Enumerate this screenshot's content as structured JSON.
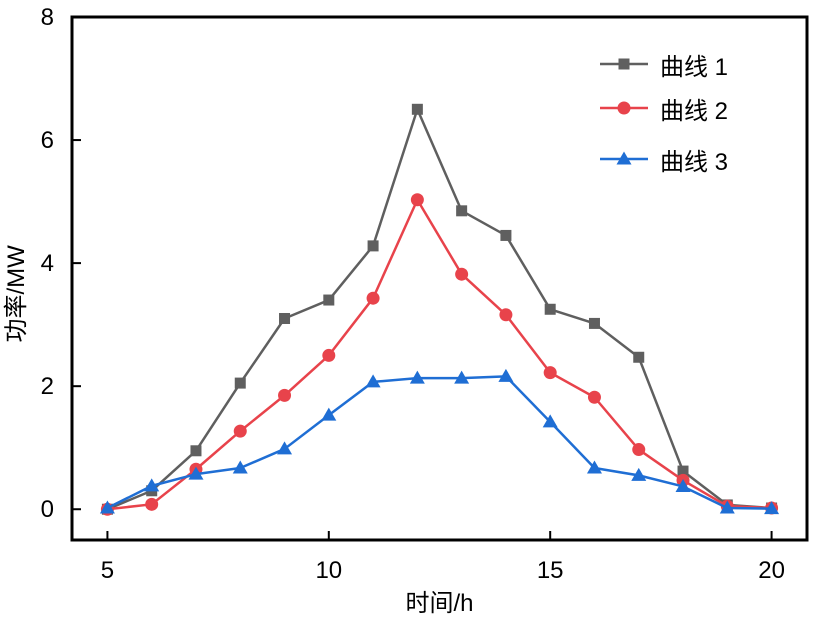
{
  "chart_data": {
    "type": "line",
    "xlabel": "时间/h",
    "ylabel": "功率/MW",
    "xlim": [
      4.2,
      20.8
    ],
    "ylim": [
      -0.5,
      8
    ],
    "xticks": [
      5,
      10,
      15,
      20
    ],
    "yticks": [
      0,
      2,
      4,
      6,
      8
    ],
    "grid": false,
    "legend_position": "top-right",
    "x": [
      5,
      6,
      7,
      8,
      9,
      10,
      11,
      12,
      13,
      14,
      15,
      16,
      17,
      18,
      19,
      20
    ],
    "series": [
      {
        "name": "曲线 1",
        "color": "#5f5f5f",
        "marker": "square",
        "values": [
          0.0,
          0.3,
          0.95,
          2.05,
          3.1,
          3.4,
          4.28,
          6.5,
          4.85,
          4.45,
          3.25,
          3.02,
          2.47,
          0.62,
          0.07,
          0.02
        ]
      },
      {
        "name": "曲线 2",
        "color": "#e8434b",
        "marker": "circle",
        "values": [
          0.0,
          0.08,
          0.65,
          1.27,
          1.85,
          2.5,
          3.43,
          5.03,
          3.82,
          3.16,
          2.22,
          1.82,
          0.97,
          0.47,
          0.05,
          0.02
        ]
      },
      {
        "name": "曲线 3",
        "color": "#1f6ed4",
        "marker": "triangle",
        "values": [
          0.02,
          0.38,
          0.57,
          0.67,
          0.98,
          1.53,
          2.07,
          2.13,
          2.13,
          2.16,
          1.42,
          0.67,
          0.55,
          0.37,
          0.02,
          0.01
        ]
      }
    ]
  }
}
